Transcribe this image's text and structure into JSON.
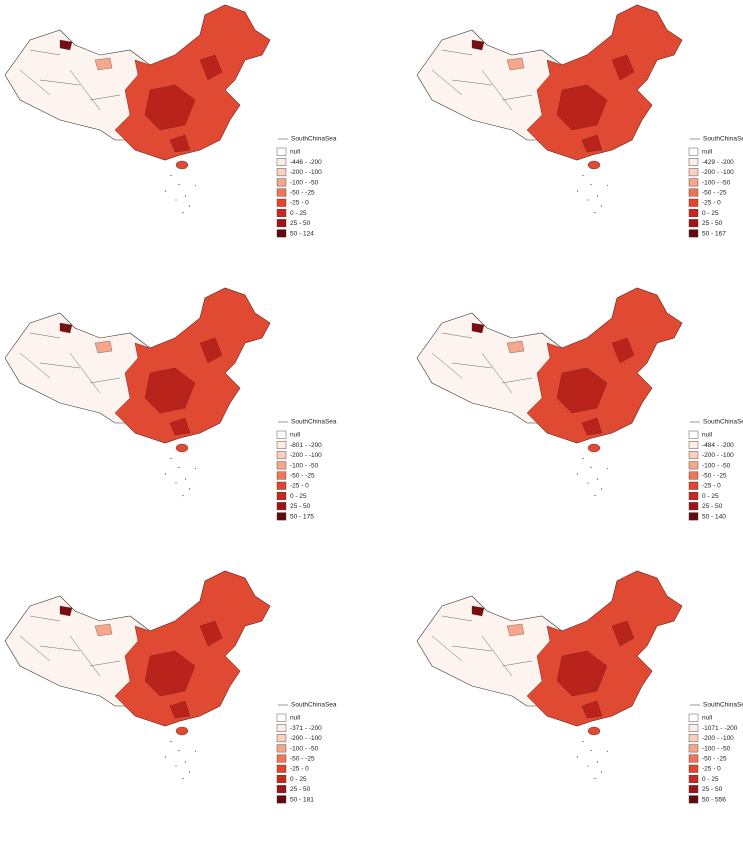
{
  "legend_colors": [
    "#ffffff",
    "#fdeee6",
    "#fbd0bd",
    "#f6a68a",
    "#f07458",
    "#e5432f",
    "#c8281f",
    "#9e1418",
    "#640a0e"
  ],
  "panels": [
    {
      "south_china_sea": "SouthChinaSea",
      "legend": [
        "null",
        "-446 - -200",
        "-200 - -100",
        "-100 - -50",
        "-50 - -25",
        "-25 - 0",
        "0 - 25",
        "25 - 50",
        "50 - 124"
      ]
    },
    {
      "south_china_sea": "SouthChinaSea",
      "legend": [
        "null",
        "-429 - -200",
        "-200 - -100",
        "-100 - -50",
        "-50 - -25",
        "-25 - 0",
        "0 - 25",
        "25 - 50",
        "50 - 167"
      ]
    },
    {
      "south_china_sea": "SouthChinaSea",
      "legend": [
        "null",
        "-801 - -200",
        "-200 - -100",
        "-100 - -50",
        "-50 - -25",
        "-25 - 0",
        "0 - 25",
        "25 - 50",
        "50 - 175"
      ]
    },
    {
      "south_china_sea": "SouthChinaSea",
      "legend": [
        "null",
        "-484 - -200",
        "-200 - -100",
        "-100 - -50",
        "-50 - -25",
        "-25 - 0",
        "0 - 25",
        "25 - 50",
        "50 - 140"
      ]
    },
    {
      "south_china_sea": "SouthChinaSea",
      "legend": [
        "null",
        "-371 - -200",
        "-200 - -100",
        "-100 - -50",
        "-50 - -25",
        "-25 - 0",
        "0 - 25",
        "25 - 50",
        "50 - 181"
      ]
    },
    {
      "south_china_sea": "SouthChinaSea",
      "legend": [
        "null",
        "-1071 - -200",
        "-200 - -100",
        "-100 - -50",
        "-50 - -25",
        "-25 - 0",
        "0 - 25",
        "25 - 50",
        "50 - 556"
      ]
    }
  ]
}
